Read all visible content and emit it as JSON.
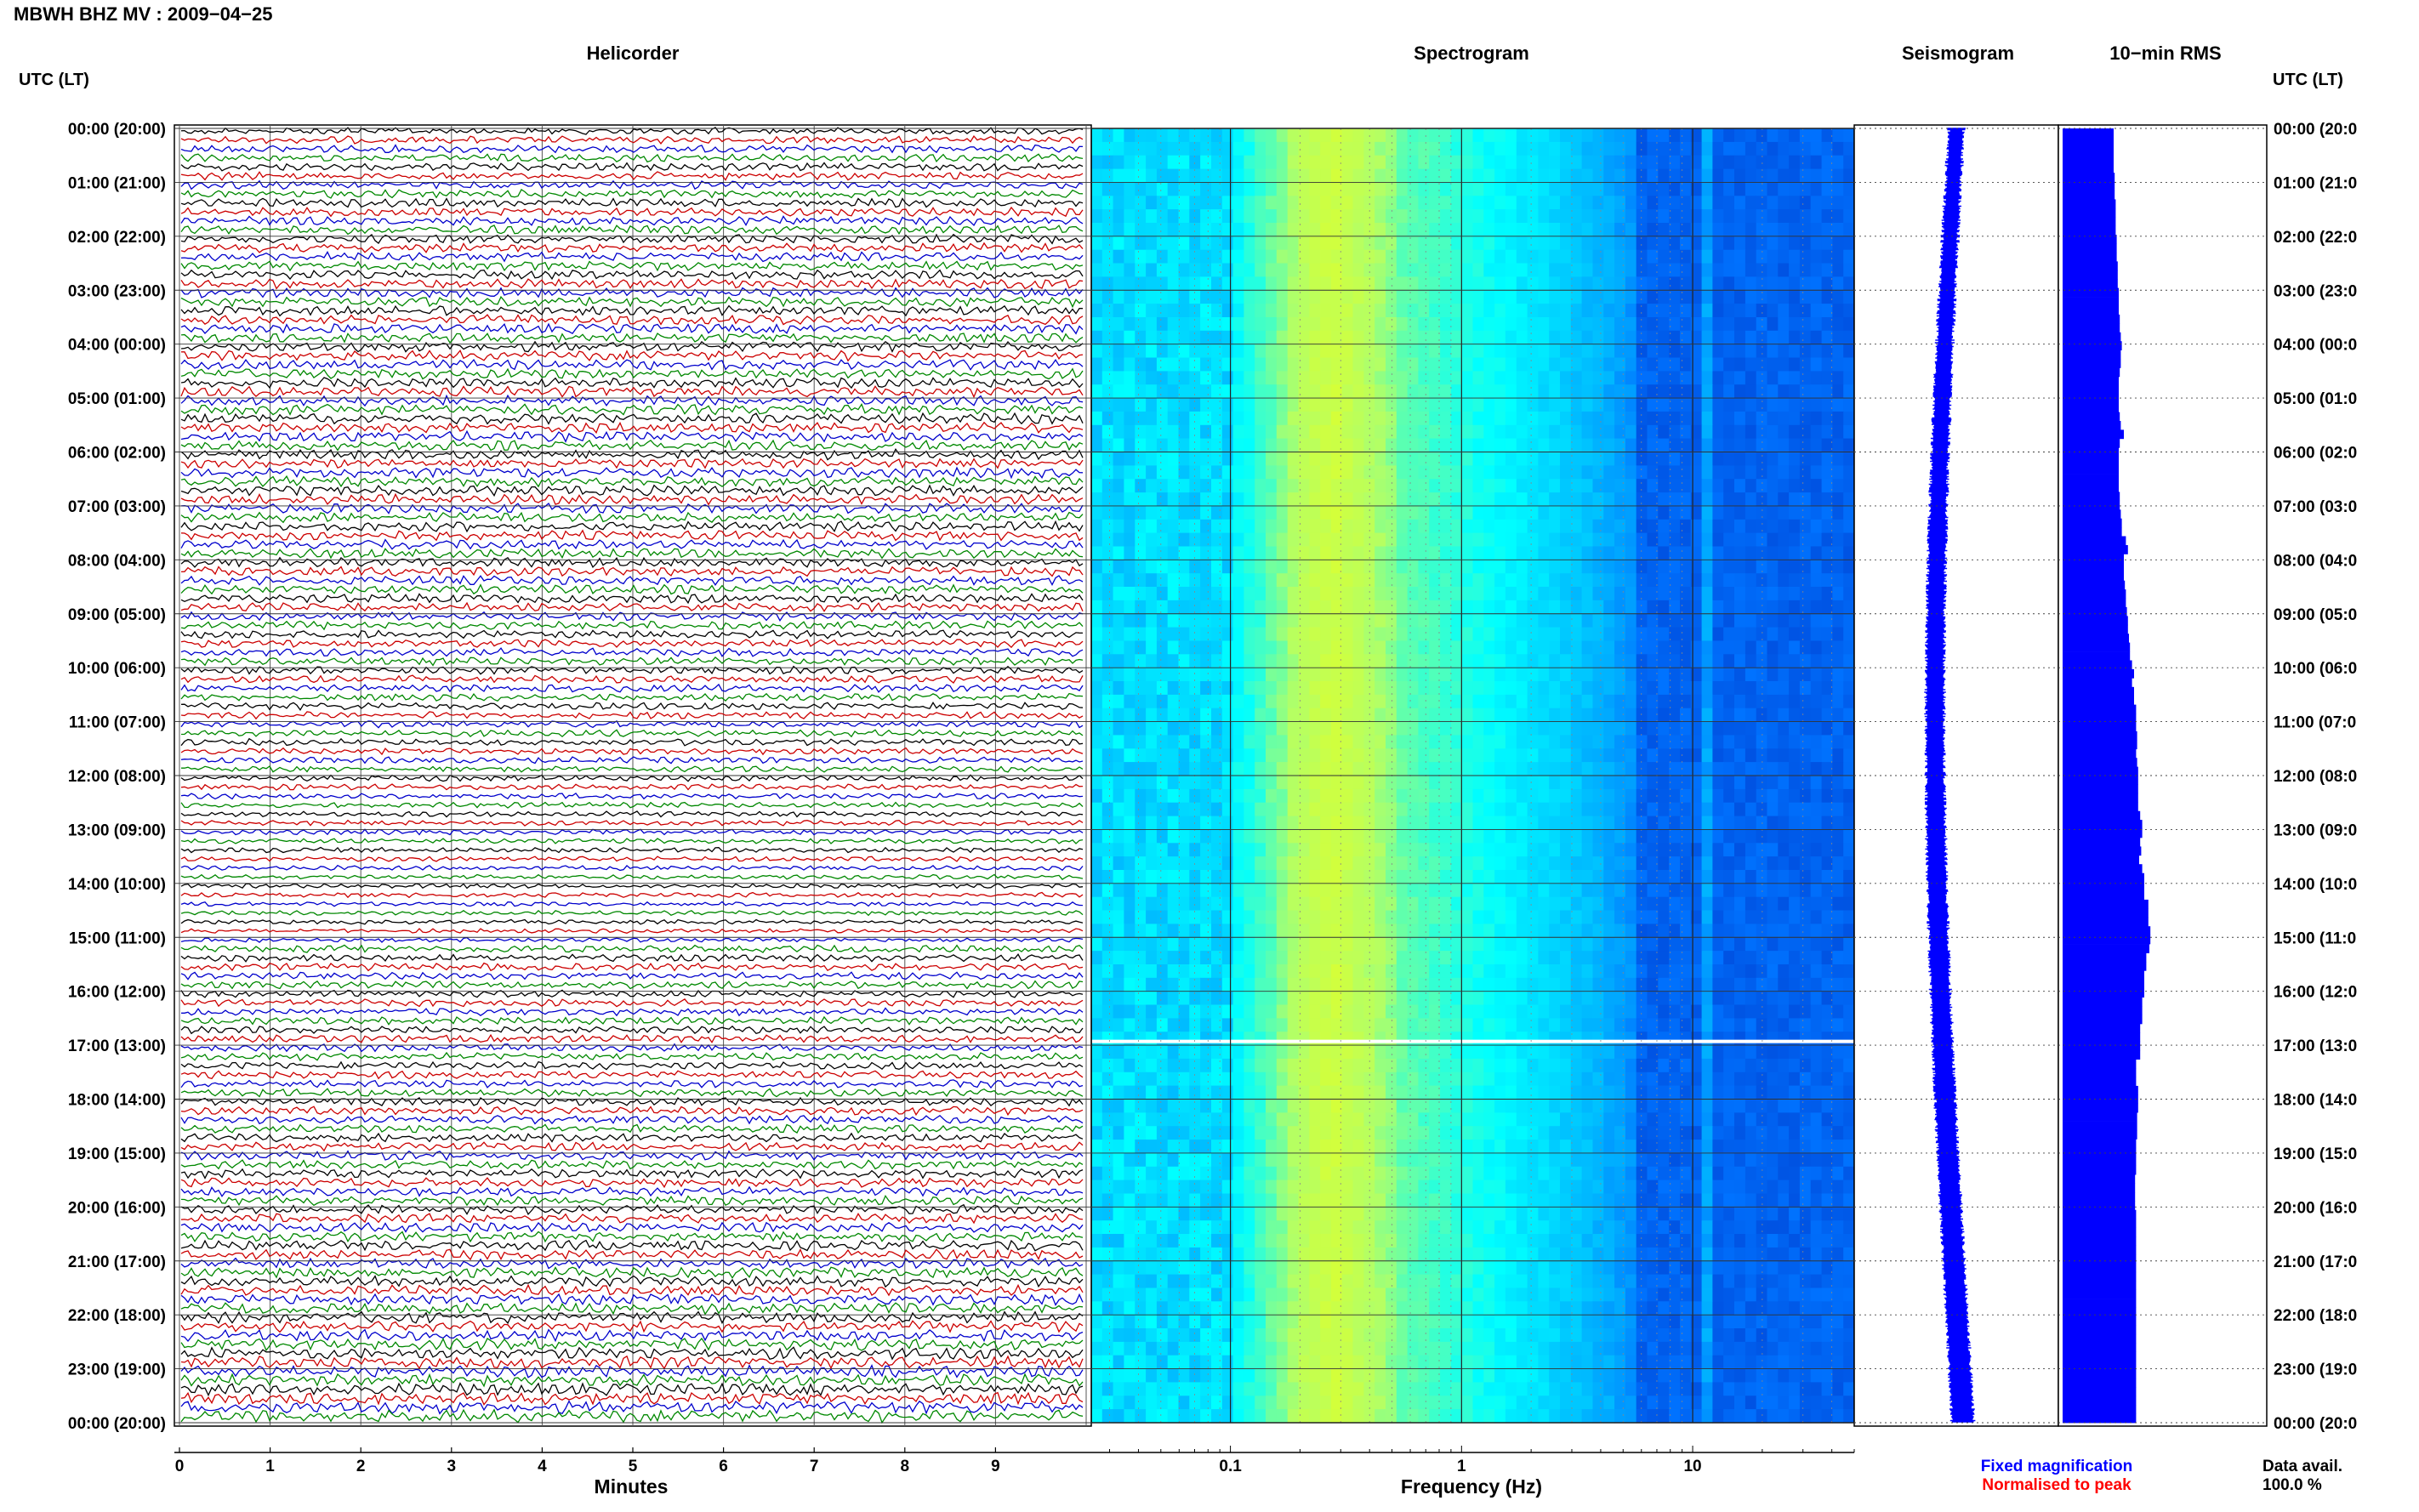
{
  "page": {
    "title": "MBWH BHZ MV : 2009−04−25",
    "time_header_left": "UTC (LT)",
    "time_header_right": "UTC (LT)"
  },
  "panels": {
    "helicorder": "Helicorder",
    "spectrogram": "Spectrogram",
    "seismogram": "Seismogram",
    "rms": "10−min RMS"
  },
  "helicorder_axis": {
    "xlabel": "Minutes",
    "ticks": [
      "0",
      "1",
      "2",
      "3",
      "4",
      "5",
      "6",
      "7",
      "8",
      "9"
    ],
    "trace_colors": [
      "#000000",
      "#cc0000",
      "#0000cc",
      "#008800"
    ]
  },
  "spectrogram_axis": {
    "xlabel": "Frequency (Hz)",
    "ticks": [
      0.1,
      1,
      10
    ],
    "tick_labels": [
      "0.1",
      "1",
      "10"
    ],
    "xlim": [
      0.025,
      50
    ],
    "scale": "log"
  },
  "time_labels_left": [
    "00:00 (20:00)",
    "01:00 (21:00)",
    "02:00 (22:00)",
    "03:00 (23:00)",
    "04:00 (00:00)",
    "05:00 (01:00)",
    "06:00 (02:00)",
    "07:00 (03:00)",
    "08:00 (04:00)",
    "09:00 (05:00)",
    "10:00 (06:00)",
    "11:00 (07:00)",
    "12:00 (08:00)",
    "13:00 (09:00)",
    "14:00 (10:00)",
    "15:00 (11:00)",
    "16:00 (12:00)",
    "17:00 (13:00)",
    "18:00 (14:00)",
    "19:00 (15:00)",
    "20:00 (16:00)",
    "21:00 (17:00)",
    "22:00 (18:00)",
    "23:00 (19:00)",
    "00:00 (20:00)"
  ],
  "time_labels_right": [
    "00:00 (20:0",
    "01:00 (21:0",
    "02:00 (22:0",
    "03:00 (23:0",
    "04:00 (00:0",
    "05:00 (01:0",
    "06:00 (02:0",
    "07:00 (03:0",
    "08:00 (04:0",
    "09:00 (05:0",
    "10:00 (06:0",
    "11:00 (07:0",
    "12:00 (08:0",
    "13:00 (09:0",
    "14:00 (10:0",
    "15:00 (11:0",
    "16:00 (12:0",
    "17:00 (13:0",
    "18:00 (14:0",
    "19:00 (15:0",
    "20:00 (16:0",
    "21:00 (17:0",
    "22:00 (18:0",
    "23:00 (19:0",
    "00:00 (20:0"
  ],
  "legend": {
    "fixed": "Fixed magnification",
    "fixed_color": "#0000ff",
    "normalised": "Normalised to peak",
    "normalised_color": "#ff0000"
  },
  "data_avail": {
    "label": "Data avail.",
    "value": "100.0 %"
  },
  "chart_data": {
    "type": "heatmap",
    "title": "MBWH BHZ MV : 2009−04−25",
    "rms_10min_relative": [
      0.5,
      0.5,
      0.5,
      0.5,
      0.5,
      0.51,
      0.51,
      0.51,
      0.52,
      0.52,
      0.52,
      0.52,
      0.53,
      0.53,
      0.53,
      0.54,
      0.54,
      0.54,
      0.55,
      0.55,
      0.55,
      0.56,
      0.56,
      0.57,
      0.58,
      0.57,
      0.57,
      0.56,
      0.55,
      0.55,
      0.55,
      0.55,
      0.56,
      0.57,
      0.6,
      0.56,
      0.55,
      0.55,
      0.55,
      0.55,
      0.55,
      0.56,
      0.56,
      0.57,
      0.58,
      0.58,
      0.62,
      0.64,
      0.6,
      0.6,
      0.6,
      0.61,
      0.62,
      0.62,
      0.63,
      0.64,
      0.64,
      0.65,
      0.66,
      0.66,
      0.68,
      0.7,
      0.68,
      0.7,
      0.7,
      0.72,
      0.72,
      0.72,
      0.73,
      0.73,
      0.72,
      0.73,
      0.74,
      0.74,
      0.74,
      0.74,
      0.74,
      0.76,
      0.78,
      0.78,
      0.76,
      0.77,
      0.75,
      0.78,
      0.8,
      0.8,
      0.8,
      0.84,
      0.84,
      0.84,
      0.86,
      0.86,
      0.85,
      0.82,
      0.82,
      0.8,
      0.8,
      0.8,
      0.78,
      0.78,
      0.78,
      0.76,
      0.76,
      0.76,
      0.76,
      0.72,
      0.72,
      0.72,
      0.74,
      0.74,
      0.74,
      0.73,
      0.73,
      0.73,
      0.72,
      0.72,
      0.72,
      0.72,
      0.71,
      0.71,
      0.71,
      0.71,
      0.72,
      0.72,
      0.72,
      0.72,
      0.72,
      0.72,
      0.72,
      0.72,
      0.72,
      0.72,
      0.72,
      0.72,
      0.72,
      0.72,
      0.72,
      0.72,
      0.72,
      0.72,
      0.72,
      0.72,
      0.72,
      0.72,
      0.72,
      0.72
    ]
  }
}
